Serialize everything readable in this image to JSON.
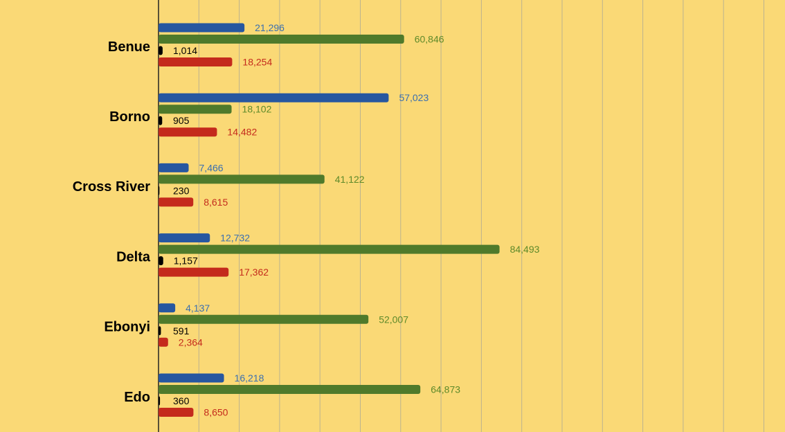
{
  "colors": {
    "background": "#fad976",
    "gridline": "#bcb38f",
    "axis": "#222222"
  },
  "chart_data": {
    "type": "bar",
    "orientation": "horizontal",
    "grid": true,
    "legend": "none",
    "xlim": [
      0,
      150000
    ],
    "grid_step": 10000,
    "categories": [
      "Benue",
      "Borno",
      "Cross River",
      "Delta",
      "Ebonyi",
      "Edo"
    ],
    "series": [
      {
        "color": "#2757a0",
        "label_color": "#3a6fb0",
        "values": [
          21296,
          57023,
          7466,
          12732,
          4137,
          16218
        ],
        "labels": [
          "21,296",
          "57,023",
          "7,466",
          "12,732",
          "4,137",
          "16,218"
        ]
      },
      {
        "color": "#4f7a2b",
        "label_color": "#5e8a2a",
        "values": [
          60846,
          18102,
          41122,
          84493,
          52007,
          64873
        ],
        "labels": [
          "60,846",
          "18,102",
          "41,122",
          "84,493",
          "52,007",
          "64,873"
        ]
      },
      {
        "color": "#000000",
        "label_color": "#000000",
        "values": [
          1014,
          905,
          230,
          1157,
          591,
          360
        ],
        "labels": [
          "1,014",
          "905",
          "230",
          "1,157",
          "591",
          "360"
        ]
      },
      {
        "color": "#c42a1c",
        "label_color": "#c42a1c",
        "values": [
          18254,
          14482,
          8615,
          17362,
          2364,
          8650
        ],
        "labels": [
          "18,254",
          "14,482",
          "8,615",
          "17,362",
          "2,364",
          "8,650"
        ]
      }
    ]
  }
}
